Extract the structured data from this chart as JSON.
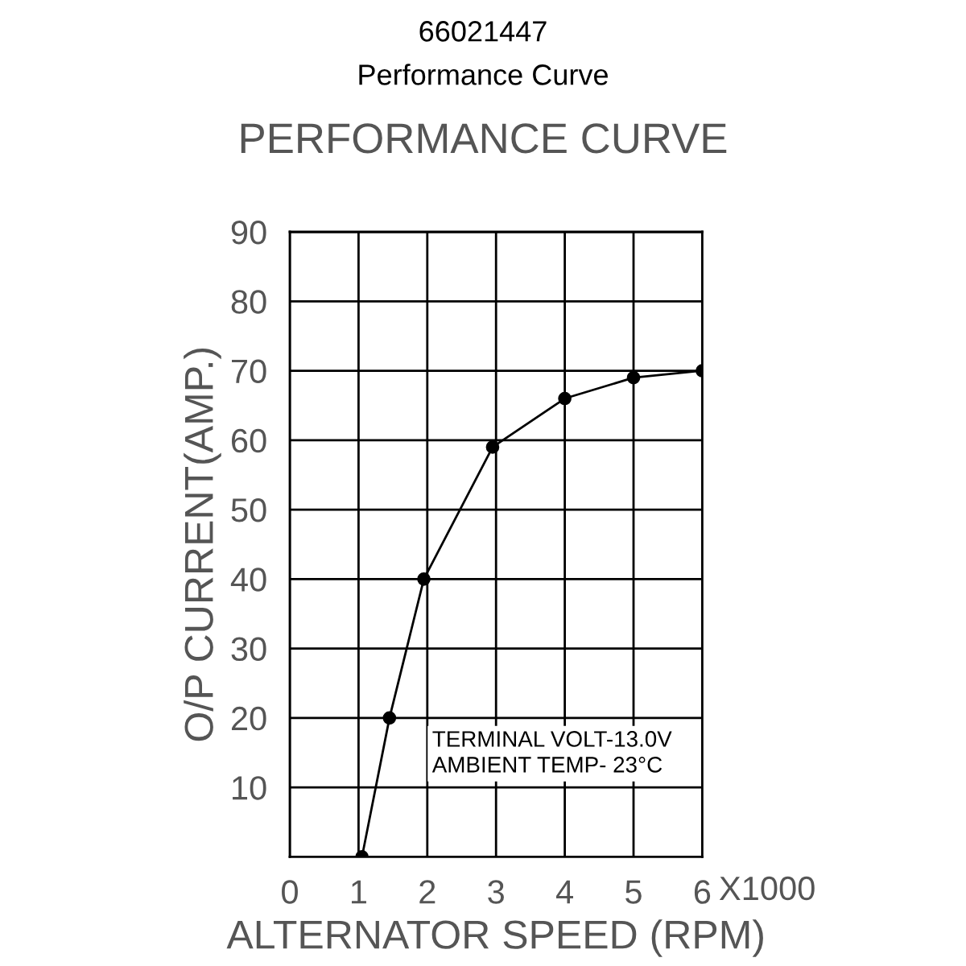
{
  "chart_data": {
    "type": "line",
    "title": "66021447",
    "subtitle": "Performance Curve\nPERFORMANCE CURVE",
    "xlabel": "ALTERNATOR SPEED (RPM)",
    "ylabel": "O/P CURRENT(AMP.)",
    "x": [
      1.05,
      1.45,
      1.95,
      2.95,
      4,
      5,
      6
    ],
    "series": [
      {
        "color": "#000000",
        "values": [
          0,
          20,
          40,
          59,
          66,
          69,
          70
        ]
      }
    ],
    "xlim": [
      0,
      6
    ],
    "xticks": [
      0,
      1,
      2,
      3,
      4,
      5,
      6
    ],
    "ylim": [
      0,
      90
    ],
    "yticks": [
      {
        "value": 0,
        "label": null
      },
      10,
      20,
      30,
      40,
      50,
      60,
      70,
      80,
      90
    ],
    "grid": true,
    "marker": "circle",
    "line_style": "solid",
    "legend": false,
    "annotations": [
      "X1000",
      "TERMINAL VOLT-13.0V\nAMBIENT TEMP- 23°C"
    ]
  }
}
